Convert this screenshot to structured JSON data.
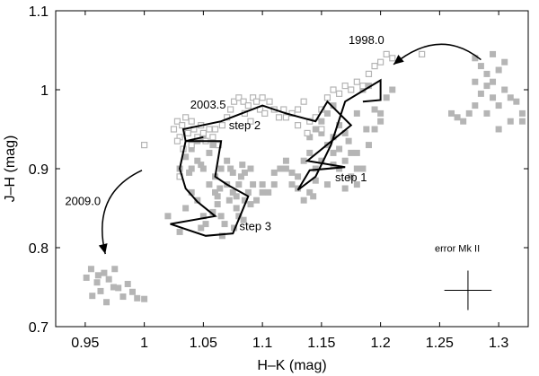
{
  "chart_data": {
    "type": "scatter",
    "title": "",
    "xlabel": "H–K (mag)",
    "ylabel": "J–H (mag)",
    "xlim": [
      0.925,
      1.325
    ],
    "ylim": [
      0.7,
      1.1
    ],
    "xticks": [
      0.95,
      1.0,
      1.05,
      1.1,
      1.15,
      1.2,
      1.25,
      1.3
    ],
    "xtick_labels": [
      "0.95",
      "1",
      "1.05",
      "1.1",
      "1.15",
      "1.2",
      "1.25",
      "1.3"
    ],
    "yticks": [
      0.7,
      0.8,
      0.9,
      1.0,
      1.1
    ],
    "ytick_labels": [
      "0.7",
      "0.8",
      "0.9",
      "1",
      "1.1"
    ],
    "grid": false,
    "colors": {
      "points": "#b5b5b5",
      "line": "#000000",
      "axis": "#000000"
    },
    "series": [
      {
        "name": "filled",
        "marker": "filled-square",
        "points": [
          [
            0.951,
            0.762
          ],
          [
            0.955,
            0.773
          ],
          [
            0.96,
            0.756
          ],
          [
            0.963,
            0.745
          ],
          [
            0.966,
            0.768
          ],
          [
            0.97,
            0.76
          ],
          [
            0.975,
            0.773
          ],
          [
            0.978,
            0.749
          ],
          [
            0.982,
            0.738
          ],
          [
            0.986,
            0.754
          ],
          [
            0.99,
            0.744
          ],
          [
            0.994,
            0.736
          ],
          [
            1.0,
            0.735
          ],
          [
            0.956,
            0.739
          ],
          [
            0.961,
            0.765
          ],
          [
            0.968,
            0.731
          ],
          [
            0.974,
            0.75
          ],
          [
            1.02,
            0.84
          ],
          [
            1.03,
            0.82
          ],
          [
            1.035,
            0.85
          ],
          [
            1.04,
            0.87
          ],
          [
            1.045,
            0.86
          ],
          [
            1.05,
            0.84
          ],
          [
            1.052,
            0.83
          ],
          [
            1.055,
            0.88
          ],
          [
            1.06,
            0.87
          ],
          [
            1.062,
            0.855
          ],
          [
            1.065,
            0.84
          ],
          [
            1.068,
            0.83
          ],
          [
            1.07,
            0.88
          ],
          [
            1.072,
            0.86
          ],
          [
            1.075,
            0.87
          ],
          [
            1.078,
            0.85
          ],
          [
            1.08,
            0.84
          ],
          [
            1.082,
            0.89
          ],
          [
            1.085,
            0.86
          ],
          [
            1.088,
            0.87
          ],
          [
            1.09,
            0.855
          ],
          [
            1.058,
            0.845
          ],
          [
            1.048,
            0.825
          ],
          [
            1.066,
            0.815
          ],
          [
            1.076,
            0.825
          ],
          [
            1.084,
            0.835
          ],
          [
            1.095,
            0.86
          ],
          [
            1.1,
            0.87
          ],
          [
            1.092,
            0.88
          ],
          [
            1.04,
            0.9
          ],
          [
            1.045,
            0.91
          ],
          [
            1.05,
            0.9
          ],
          [
            1.055,
            0.92
          ],
          [
            1.06,
            0.89
          ],
          [
            1.065,
            0.9
          ],
          [
            1.07,
            0.91
          ],
          [
            1.075,
            0.895
          ],
          [
            1.08,
            0.88
          ],
          [
            1.085,
            0.895
          ],
          [
            1.09,
            0.9
          ],
          [
            1.078,
            0.865
          ],
          [
            1.064,
            0.875
          ],
          [
            1.073,
            0.9
          ],
          [
            1.083,
            0.905
          ],
          [
            1.062,
            0.865
          ],
          [
            1.12,
            0.9
          ],
          [
            1.13,
            0.89
          ],
          [
            1.135,
            0.91
          ],
          [
            1.14,
            0.92
          ],
          [
            1.145,
            0.9
          ],
          [
            1.15,
            0.91
          ],
          [
            1.155,
            0.93
          ],
          [
            1.16,
            0.92
          ],
          [
            1.165,
            0.9
          ],
          [
            1.17,
            0.91
          ],
          [
            1.175,
            0.89
          ],
          [
            1.18,
            0.88
          ],
          [
            1.185,
            0.9
          ],
          [
            1.19,
            0.93
          ],
          [
            1.195,
            0.95
          ],
          [
            1.2,
            0.97
          ],
          [
            1.205,
            0.99
          ],
          [
            1.21,
            1.0
          ],
          [
            1.14,
            0.94
          ],
          [
            1.145,
            0.95
          ],
          [
            1.15,
            0.96
          ],
          [
            1.155,
            0.97
          ],
          [
            1.16,
            0.98
          ],
          [
            1.165,
            0.955
          ],
          [
            1.17,
            0.945
          ],
          [
            1.175,
            0.92
          ],
          [
            1.18,
            0.97
          ],
          [
            1.185,
            1.0
          ],
          [
            1.19,
            1.005
          ],
          [
            1.2,
            0.96
          ],
          [
            1.15,
            0.945
          ],
          [
            1.16,
            0.905
          ],
          [
            1.165,
            0.925
          ],
          [
            1.13,
            0.875
          ],
          [
            1.14,
            0.87
          ],
          [
            1.145,
            0.885
          ],
          [
            1.155,
            0.88
          ],
          [
            1.17,
            0.875
          ],
          [
            1.18,
            0.9
          ],
          [
            1.125,
            0.88
          ],
          [
            1.135,
            0.86
          ],
          [
            1.143,
            0.865
          ],
          [
            1.16,
            0.94
          ],
          [
            1.173,
            0.935
          ],
          [
            1.18,
            0.92
          ],
          [
            1.188,
            0.95
          ],
          [
            1.195,
            0.975
          ],
          [
            1.03,
            0.9
          ],
          [
            1.035,
            0.915
          ],
          [
            1.04,
            0.925
          ],
          [
            1.045,
            0.935
          ],
          [
            1.05,
            0.94
          ],
          [
            1.038,
            0.895
          ],
          [
            1.048,
            0.905
          ],
          [
            1.058,
            0.93
          ],
          [
            1.1,
            0.88
          ],
          [
            1.105,
            0.87
          ],
          [
            1.11,
            0.895
          ],
          [
            1.12,
            0.91
          ],
          [
            1.115,
            0.9
          ],
          [
            1.11,
            0.88
          ],
          [
            1.125,
            0.895
          ],
          [
            1.28,
            1.04
          ],
          [
            1.285,
            1.03
          ],
          [
            1.29,
            1.02
          ],
          [
            1.295,
            1.01
          ],
          [
            1.3,
            1.025
          ],
          [
            1.305,
            1.0
          ],
          [
            1.31,
            0.99
          ],
          [
            1.315,
            0.985
          ],
          [
            1.32,
            0.97
          ],
          [
            1.3,
            0.98
          ],
          [
            1.295,
            0.99
          ],
          [
            1.29,
            1.005
          ],
          [
            1.285,
            0.995
          ],
          [
            1.28,
            0.98
          ],
          [
            1.275,
            0.97
          ],
          [
            1.27,
            0.96
          ],
          [
            1.265,
            0.965
          ],
          [
            1.26,
            0.97
          ],
          [
            1.31,
            0.96
          ],
          [
            1.32,
            0.96
          ],
          [
            1.3,
            0.95
          ],
          [
            1.305,
            1.035
          ],
          [
            1.295,
            1.045
          ],
          [
            1.28,
            1.01
          ],
          [
            1.29,
            0.97
          ]
        ]
      },
      {
        "name": "open",
        "marker": "open-square",
        "points": [
          [
            1.025,
            0.95
          ],
          [
            1.028,
            0.96
          ],
          [
            1.03,
            0.94
          ],
          [
            1.032,
            0.955
          ],
          [
            1.035,
            0.965
          ],
          [
            1.037,
            0.945
          ],
          [
            1.04,
            0.96
          ],
          [
            1.042,
            0.95
          ],
          [
            1.045,
            0.94
          ],
          [
            1.048,
            0.955
          ],
          [
            1.05,
            0.945
          ],
          [
            1.052,
            0.935
          ],
          [
            1.055,
            0.95
          ],
          [
            1.058,
            0.94
          ],
          [
            1.06,
            0.95
          ],
          [
            1.063,
            0.93
          ],
          [
            1.066,
            0.955
          ],
          [
            1.07,
            0.965
          ],
          [
            1.073,
            0.975
          ],
          [
            1.076,
            0.985
          ],
          [
            1.08,
            0.99
          ],
          [
            1.084,
            0.985
          ],
          [
            1.088,
            0.98
          ],
          [
            1.092,
            0.99
          ],
          [
            1.095,
            0.985
          ],
          [
            1.098,
            0.975
          ],
          [
            1.1,
            0.99
          ],
          [
            1.102,
            0.97
          ],
          [
            1.106,
            0.985
          ],
          [
            1.11,
            0.975
          ],
          [
            1.114,
            0.965
          ],
          [
            1.118,
            0.975
          ],
          [
            1.12,
            0.965
          ],
          [
            1.125,
            0.97
          ],
          [
            1.13,
            0.975
          ],
          [
            1.135,
            0.985
          ],
          [
            1.14,
            0.96
          ],
          [
            1.145,
            0.965
          ],
          [
            1.15,
            0.975
          ],
          [
            1.155,
            0.99
          ],
          [
            1.16,
            1.0
          ],
          [
            1.165,
            0.995
          ],
          [
            1.17,
            1.005
          ],
          [
            1.175,
            1.0
          ],
          [
            1.18,
            1.01
          ],
          [
            1.185,
            1.005
          ],
          [
            1.19,
            1.02
          ],
          [
            1.195,
            1.03
          ],
          [
            1.2,
            1.035
          ],
          [
            1.205,
            1.045
          ],
          [
            1.21,
            1.04
          ],
          [
            1.235,
            1.045
          ],
          [
            1.13,
            0.955
          ],
          [
            1.138,
            0.945
          ],
          [
            1.028,
            0.935
          ],
          [
            1.033,
            0.925
          ],
          [
            1.04,
            0.93
          ],
          [
            1.085,
            0.97
          ],
          [
            1.09,
            0.96
          ],
          [
            1.15,
            0.95
          ],
          [
            1.0,
            0.93
          ],
          [
            1.03,
            0.89
          ]
        ]
      }
    ],
    "track": [
      [
        1.185,
        0.985
      ],
      [
        1.2,
        0.987
      ],
      [
        1.2,
        1.012
      ],
      [
        1.17,
        0.985
      ],
      [
        1.158,
        0.93
      ],
      [
        1.145,
        0.89
      ],
      [
        1.13,
        0.873
      ],
      [
        1.14,
        0.898
      ],
      [
        1.17,
        0.902
      ],
      [
        1.138,
        0.91
      ],
      [
        1.175,
        0.955
      ],
      [
        1.155,
        0.985
      ],
      [
        1.145,
        0.96
      ],
      [
        1.12,
        0.97
      ],
      [
        1.1,
        0.98
      ],
      [
        1.065,
        0.96
      ],
      [
        1.033,
        0.95
      ],
      [
        1.035,
        0.935
      ],
      [
        1.065,
        0.935
      ],
      [
        1.06,
        0.89
      ],
      [
        1.07,
        0.88
      ],
      [
        1.088,
        0.865
      ],
      [
        1.075,
        0.818
      ],
      [
        1.052,
        0.815
      ],
      [
        1.022,
        0.83
      ],
      [
        1.06,
        0.84
      ],
      [
        1.045,
        0.858
      ],
      [
        1.035,
        0.875
      ],
      [
        1.03,
        0.9
      ],
      [
        1.035,
        0.935
      ],
      [
        1.05,
        0.94
      ]
    ],
    "annotations": [
      {
        "text": "1998.0",
        "at": [
          1.188,
          1.058
        ]
      },
      {
        "text": "2003.5",
        "at": [
          1.054,
          0.976
        ]
      },
      {
        "text": "step 2",
        "at": [
          1.085,
          0.95
        ]
      },
      {
        "text": "step 1",
        "at": [
          1.175,
          0.884
        ]
      },
      {
        "text": "step 3",
        "at": [
          1.094,
          0.822
        ]
      },
      {
        "text": "2009.0",
        "at": [
          0.948,
          0.854
        ]
      },
      {
        "text": "error Mk II",
        "at": [
          1.265,
          0.795
        ]
      }
    ],
    "arrows": [
      {
        "from": [
          1.285,
          1.038
        ],
        "to": [
          1.211,
          1.032
        ],
        "control": [
          1.25,
          1.08
        ]
      },
      {
        "from": [
          0.998,
          0.898
        ],
        "to": [
          0.967,
          0.792
        ],
        "control": [
          0.955,
          0.868
        ]
      }
    ],
    "error_bar": {
      "center": [
        1.274,
        0.746
      ],
      "dx": 0.02,
      "dy": 0.025
    }
  }
}
